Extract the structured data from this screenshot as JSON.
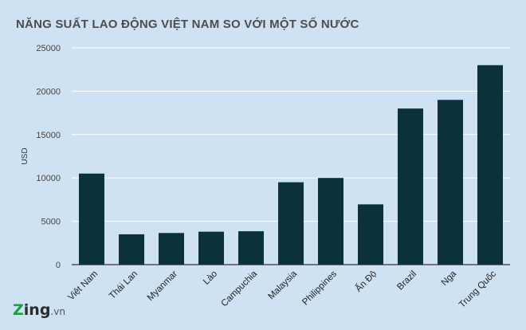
{
  "chart_data": {
    "type": "bar",
    "title": "NĂNG SUẤT LAO ĐỘNG VIỆT NAM SO VỚI MỘT SỐ NƯỚC",
    "xlabel": "",
    "ylabel": "USD",
    "categories": [
      "Việt Nam",
      "Thái Lan",
      "Myanmar",
      "Lào",
      "Campuchia",
      "Malaysia",
      "Philippines",
      "Ấn Độ",
      "Brazil",
      "Nga",
      "Trung Quốc"
    ],
    "values": [
      10500,
      3500,
      3650,
      3800,
      3850,
      9500,
      10000,
      6950,
      18000,
      19000,
      23000
    ],
    "ylim": [
      0,
      25000
    ],
    "yticks": [
      0,
      5000,
      10000,
      15000,
      20000,
      25000
    ],
    "grid": true,
    "legend": "none",
    "bar_color": "#0b323b",
    "grid_color": "#ffffff"
  },
  "logo": {
    "brand_z": "Z",
    "brand_rest": "ing",
    "suffix": ".vn"
  }
}
